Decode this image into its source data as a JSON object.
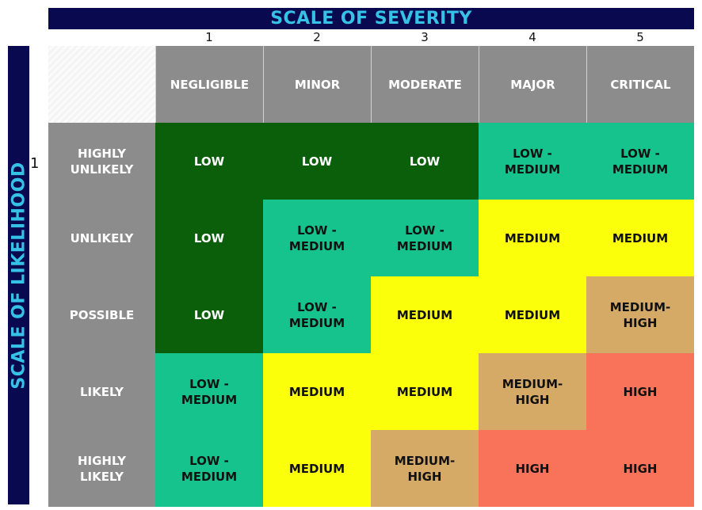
{
  "title_top": "SCALE OF SEVERITY",
  "title_left": "SCALE OF LIKELIHOOD",
  "severity_numbers": [
    "1",
    "2",
    "3",
    "4",
    "5"
  ],
  "row_number": "1",
  "severity_levels": [
    "NEGLIGIBLE",
    "MINOR",
    "MODERATE",
    "MAJOR",
    "CRITICAL"
  ],
  "likelihood_levels": [
    "HIGHLY\nUNLIKELY",
    "UNLIKELY",
    "POSSIBLE",
    "LIKELY",
    "HIGHLY\nLIKELY"
  ],
  "matrix": [
    [
      "LOW",
      "LOW",
      "LOW",
      "LOW -\nMEDIUM",
      "LOW -\nMEDIUM"
    ],
    [
      "LOW",
      "LOW -\nMEDIUM",
      "LOW -\nMEDIUM",
      "MEDIUM",
      "MEDIUM"
    ],
    [
      "LOW",
      "LOW -\nMEDIUM",
      "MEDIUM",
      "MEDIUM",
      "MEDIUM-\nHIGH"
    ],
    [
      "LOW -\nMEDIUM",
      "MEDIUM",
      "MEDIUM",
      "MEDIUM-\nHIGH",
      "HIGH"
    ],
    [
      "LOW -\nMEDIUM",
      "MEDIUM",
      "MEDIUM-\nHIGH",
      "HIGH",
      "HIGH"
    ]
  ],
  "colors": {
    "banner": "#08094f",
    "banner_text": "#36c2e6",
    "header_gray": "#8c8c8c",
    "LOW": "#0b5f0b",
    "LOW -\nMEDIUM": "#17c38d",
    "MEDIUM": "#fcff0a",
    "MEDIUM-\nHIGH": "#d5a966",
    "HIGH": "#f8735a"
  }
}
